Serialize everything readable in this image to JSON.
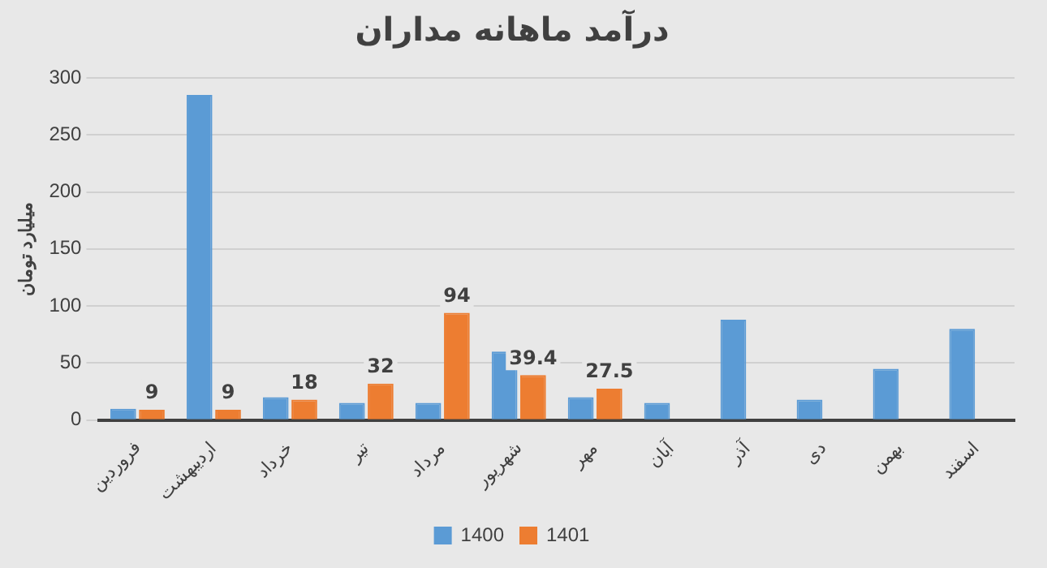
{
  "chart_data": {
    "type": "bar",
    "title": "درآمد ماهانه مداران",
    "ylabel": "میلیارد تومان",
    "categories": [
      "فروردین",
      "اردیبهشت",
      "خرداد",
      "تیر",
      "مرداد",
      "شهریور",
      "مهر",
      "آبان",
      "آذر",
      "دی",
      "بهمن",
      "اسفند"
    ],
    "series": [
      {
        "name": "1400",
        "color": "#5b9bd5",
        "values": [
          10,
          285,
          20,
          15,
          15,
          60,
          20,
          15,
          88,
          18,
          45,
          80
        ]
      },
      {
        "name": "1401",
        "color": "#ed7d31",
        "values": [
          9,
          9,
          18,
          32,
          94,
          39.4,
          27.5,
          null,
          null,
          null,
          null,
          null
        ],
        "value_labels": [
          "9",
          "9",
          "18",
          "32",
          "94",
          "39.4",
          "27.5",
          null,
          null,
          null,
          null,
          null
        ]
      }
    ],
    "ylim": [
      0,
      300
    ],
    "yticks": [
      0,
      50,
      100,
      150,
      200,
      250,
      300
    ],
    "grid": "y",
    "legend": "bottom"
  }
}
